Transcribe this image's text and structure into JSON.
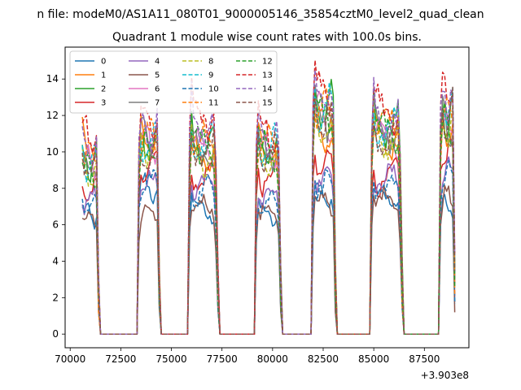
{
  "figure": {
    "suptitle": "n file: modeM0/AS1A11_080T01_9000005146_35854cztM0_level2_quad_clean",
    "title": "Quadrant 1 module wise count rates with 100.0s bins.",
    "offset_label": "+3.903e8"
  },
  "chart_data": {
    "type": "line",
    "title": "Quadrant 1 module wise count rates with 100.0s bins.",
    "xlabel": "",
    "ylabel": "",
    "x_offset": 390300000,
    "xlim": [
      69750,
      89700
    ],
    "ylim": [
      -0.75,
      15.75
    ],
    "x_ticks": [
      70000,
      72500,
      75000,
      77500,
      80000,
      82500,
      85000,
      87500
    ],
    "x_tick_labels": [
      "70000",
      "72500",
      "75000",
      "77500",
      "80000",
      "82500",
      "85000",
      "87500"
    ],
    "y_ticks": [
      0,
      2,
      4,
      6,
      8,
      10,
      12,
      14
    ],
    "y_tick_labels": [
      "0",
      "2",
      "4",
      "6",
      "8",
      "10",
      "12",
      "14"
    ],
    "grid": false,
    "legend_position": "top-left",
    "legend_columns": 4,
    "orbits": [
      [
        70600,
        71400
      ],
      [
        73400,
        74400
      ],
      [
        75900,
        77300
      ],
      [
        79200,
        80400
      ],
      [
        82000,
        83100
      ],
      [
        84900,
        86400
      ],
      [
        88300,
        89000
      ]
    ],
    "bin_seconds": 100,
    "series": [
      {
        "name": "0",
        "color": "#1f77b4",
        "dashed": false,
        "levels": [
          6.5,
          8.0,
          6.8,
          6.5,
          7.6,
          7.5,
          7.0
        ]
      },
      {
        "name": "1",
        "color": "#ff7f0e",
        "dashed": false,
        "levels": [
          10.2,
          10.6,
          10.0,
          10.1,
          11.0,
          10.7,
          11.2
        ]
      },
      {
        "name": "2",
        "color": "#2ca02c",
        "dashed": false,
        "levels": [
          9.4,
          10.5,
          10.6,
          10.2,
          12.6,
          11.6,
          12.0
        ]
      },
      {
        "name": "3",
        "color": "#d62728",
        "dashed": false,
        "levels": [
          7.7,
          9.4,
          8.6,
          8.6,
          9.4,
          8.6,
          10.0
        ]
      },
      {
        "name": "4",
        "color": "#9467bd",
        "dashed": false,
        "levels": [
          7.4,
          8.3,
          8.3,
          7.6,
          8.6,
          8.4,
          9.0
        ]
      },
      {
        "name": "5",
        "color": "#8c564b",
        "dashed": false,
        "levels": [
          6.3,
          6.5,
          6.9,
          6.6,
          7.2,
          7.3,
          7.6
        ]
      },
      {
        "name": "6",
        "color": "#e377c2",
        "dashed": false,
        "levels": [
          9.3,
          10.5,
          10.2,
          10.0,
          11.8,
          10.8,
          11.4
        ]
      },
      {
        "name": "7",
        "color": "#7f7f7f",
        "dashed": false,
        "levels": [
          9.1,
          10.8,
          10.0,
          10.2,
          12.0,
          11.2,
          11.6
        ]
      },
      {
        "name": "8",
        "color": "#bcbd22",
        "dashed": true,
        "levels": [
          8.8,
          10.3,
          9.8,
          9.8,
          11.5,
          10.9,
          11.4
        ]
      },
      {
        "name": "9",
        "color": "#17becf",
        "dashed": true,
        "levels": [
          9.5,
          10.4,
          10.7,
          10.4,
          12.4,
          11.4,
          12.6
        ]
      },
      {
        "name": "10",
        "color": "#1f77b4",
        "dashed": true,
        "levels": [
          7.0,
          8.3,
          7.8,
          7.2,
          8.2,
          8.0,
          8.6
        ]
      },
      {
        "name": "11",
        "color": "#ff7f0e",
        "dashed": true,
        "levels": [
          9.7,
          10.8,
          10.4,
          10.3,
          12.2,
          11.4,
          12.0
        ]
      },
      {
        "name": "12",
        "color": "#2ca02c",
        "dashed": true,
        "levels": [
          9.0,
          10.1,
          10.4,
          10.0,
          12.0,
          11.0,
          11.5
        ]
      },
      {
        "name": "13",
        "color": "#d62728",
        "dashed": true,
        "levels": [
          10.8,
          11.8,
          12.0,
          11.2,
          13.5,
          12.4,
          13.6
        ]
      },
      {
        "name": "14",
        "color": "#9467bd",
        "dashed": true,
        "levels": [
          10.3,
          11.3,
          11.5,
          10.9,
          13.2,
          12.0,
          13.2
        ]
      },
      {
        "name": "15",
        "color": "#8c564b",
        "dashed": true,
        "levels": [
          9.2,
          10.0,
          10.2,
          10.0,
          11.8,
          10.9,
          12.0
        ]
      }
    ]
  }
}
